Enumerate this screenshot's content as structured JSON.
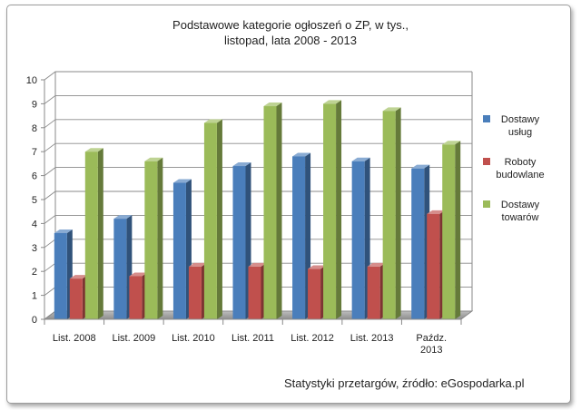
{
  "chart_data": {
    "type": "bar",
    "title": [
      "Podstawowe kategorie ogłoszeń o ZP, w tys.,",
      "listopad,  lata 2008  - 2013"
    ],
    "categories": [
      [
        "List. 2008"
      ],
      [
        "List. 2009"
      ],
      [
        "List. 2010"
      ],
      [
        "List. 2011"
      ],
      [
        "List. 2012"
      ],
      [
        "List. 2013"
      ],
      [
        "Paźdz.",
        "2013"
      ]
    ],
    "series": [
      {
        "name": [
          "Dostawy",
          "usług"
        ],
        "color": "#4a7ebb",
        "values": [
          3.6,
          4.2,
          5.7,
          6.4,
          6.8,
          6.6,
          6.3
        ]
      },
      {
        "name": [
          "Roboty",
          "budowlane"
        ],
        "color": "#c0504d",
        "values": [
          1.7,
          1.8,
          2.2,
          2.2,
          2.1,
          2.2,
          4.4
        ]
      },
      {
        "name": [
          "Dostawy",
          "towarów"
        ],
        "color": "#9bbb59",
        "values": [
          7.0,
          6.6,
          8.2,
          8.9,
          9.0,
          8.7,
          7.3
        ]
      }
    ],
    "ylim": [
      0,
      10
    ],
    "yticks": [
      "0",
      "1",
      "2",
      "3",
      "4",
      "5",
      "6",
      "7",
      "8",
      "9",
      "10"
    ],
    "grid": true,
    "legend_position": "right",
    "source": "Statystyki przetargów, źródło: eGospodarka.pl"
  }
}
